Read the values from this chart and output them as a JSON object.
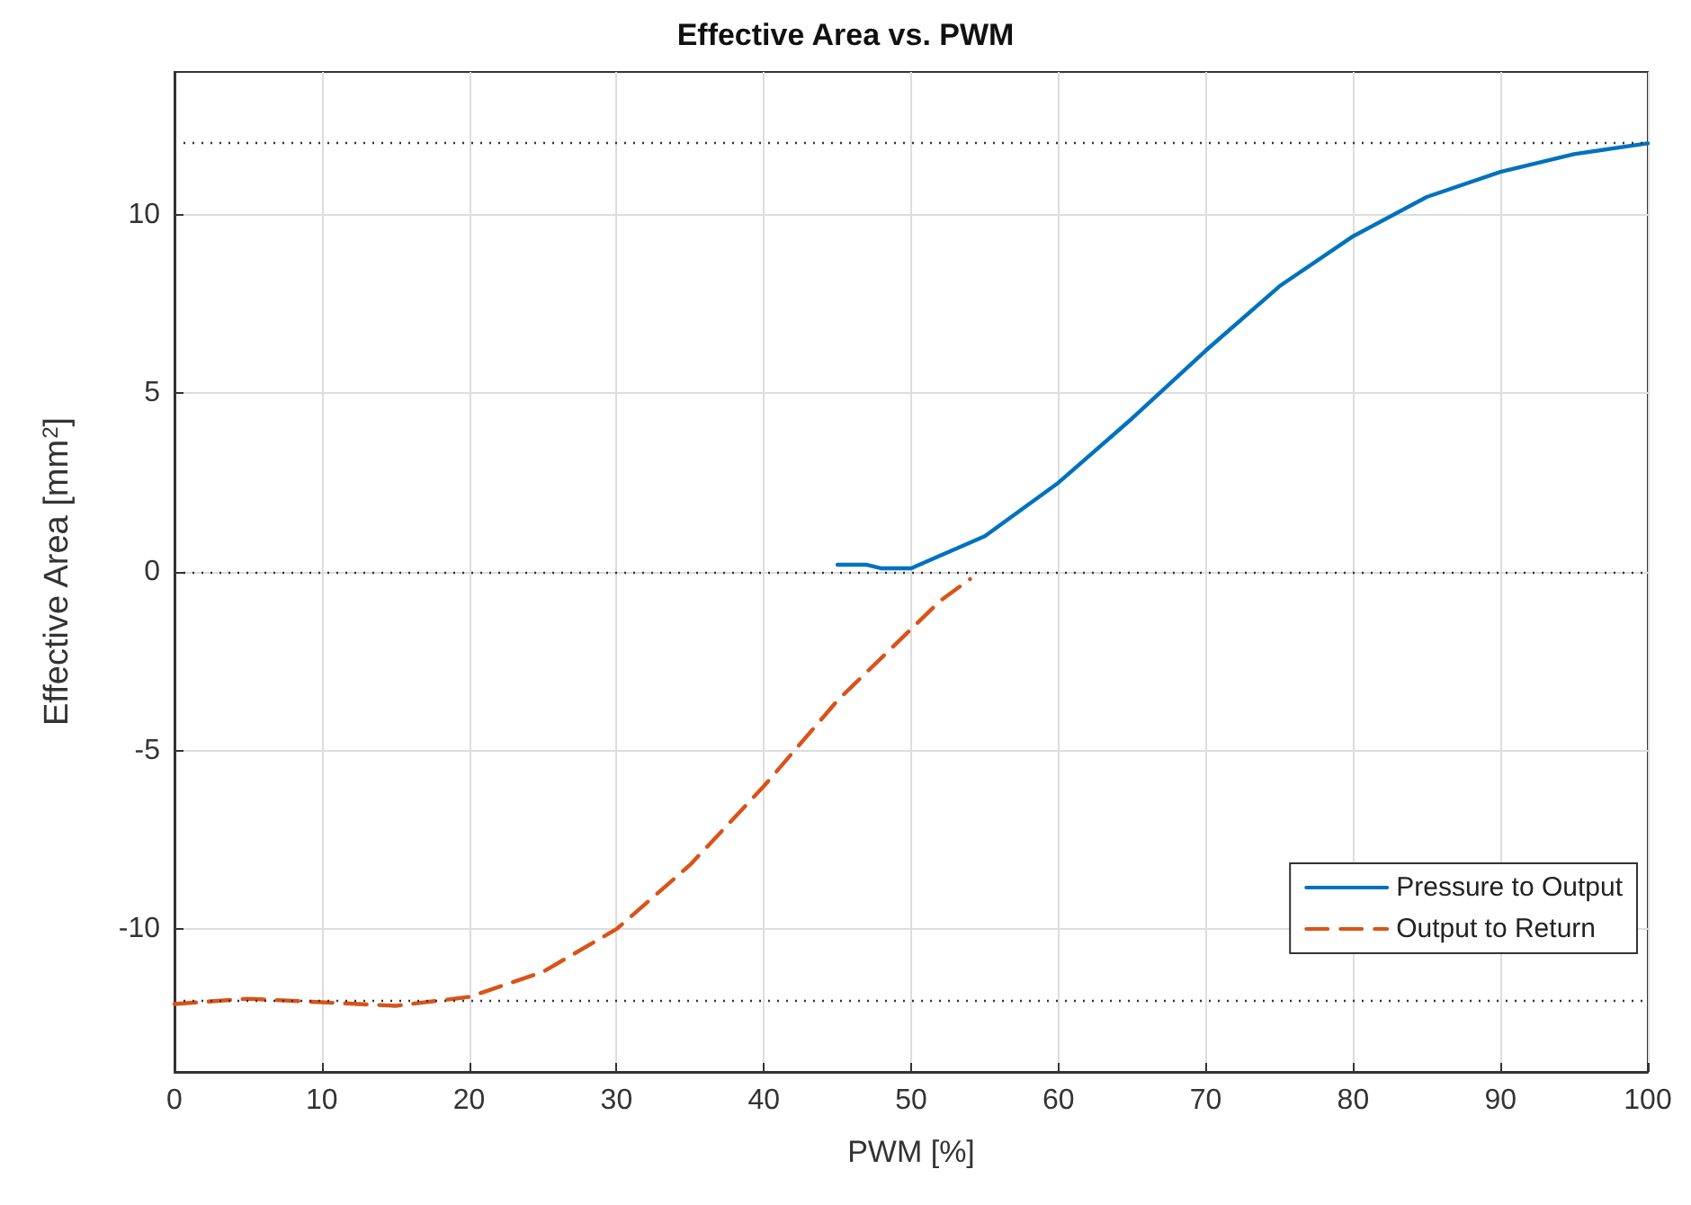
{
  "chart_data": {
    "type": "line",
    "title": "Effective Area vs. PWM",
    "xlabel": "PWM [%]",
    "ylabel": "Effective Area [mm$^{2}$]",
    "series": [
      {
        "name": "Pressure to Output",
        "color": "#0072bd",
        "line_style": "solid",
        "x": [
          45,
          47,
          48,
          50,
          55,
          60,
          65,
          70,
          75,
          80,
          85,
          90,
          95,
          100
        ],
        "values": [
          0.2,
          0.2,
          0.1,
          0.1,
          1.0,
          2.5,
          4.3,
          6.2,
          8.0,
          9.4,
          10.5,
          11.2,
          11.7,
          12.0
        ]
      },
      {
        "name": "Output to Return",
        "color": "#d95319",
        "line_style": "dashed",
        "x": [
          0,
          5,
          10,
          15,
          20,
          25,
          30,
          35,
          40,
          45,
          50,
          52,
          54
        ],
        "values": [
          -12.1,
          -11.95,
          -12.05,
          -12.15,
          -11.9,
          -11.2,
          -10,
          -8.2,
          -6.0,
          -3.6,
          -1.6,
          -0.8,
          -0.2
        ]
      }
    ],
    "xlim": [
      0,
      100
    ],
    "xticks": [
      0,
      10,
      20,
      30,
      40,
      50,
      60,
      70,
      80,
      90,
      100
    ],
    "ylim": [
      -14,
      14
    ],
    "yticks": [
      -10,
      -5,
      0,
      5,
      10
    ],
    "ref_lines": [
      {
        "axis": "y",
        "value": 12,
        "color": "#333333",
        "line_style": "dotted"
      },
      {
        "axis": "y",
        "value": 0,
        "color": "#333333",
        "line_style": "dotted"
      },
      {
        "axis": "y",
        "value": -12,
        "color": "#333333",
        "line_style": "dotted"
      }
    ],
    "grid": true,
    "legend": "bottom right",
    "marker": "none"
  }
}
